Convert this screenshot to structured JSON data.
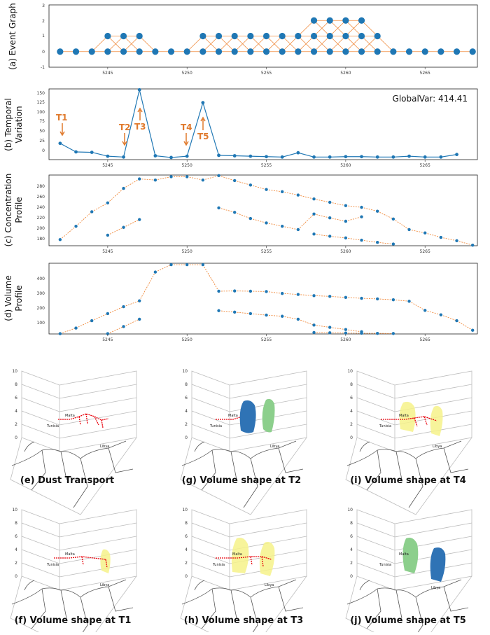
{
  "x_ticks": [
    "5245",
    "5250",
    "5255",
    "5260",
    "5265"
  ],
  "event_graph": {
    "ylabel": "(a) Event Graph",
    "yticks": [
      "3",
      "2",
      "1",
      "0",
      "-1"
    ],
    "baseline_x": [
      5242,
      5243,
      5244,
      5245,
      5246,
      5247,
      5248,
      5249,
      5250,
      5251,
      5252,
      5253,
      5254,
      5255,
      5256,
      5257,
      5258,
      5259,
      5260,
      5261,
      5262,
      5263,
      5264,
      5265,
      5266,
      5267,
      5268
    ],
    "level1_x": [
      5245,
      5246,
      5247,
      5251,
      5252,
      5253,
      5254,
      5255,
      5256,
      5257,
      5258,
      5259,
      5260,
      5261,
      5262
    ],
    "level2_x": [
      5258,
      5259,
      5260,
      5261
    ]
  },
  "temporal": {
    "ylabel_1": "(b) Temporal",
    "ylabel_2": "Variation",
    "yticks": [
      "150",
      "125",
      "100",
      "75",
      "50",
      "25",
      "0"
    ],
    "globalvar": "GlobalVar: 414.41",
    "labels": {
      "t1": "T1",
      "t2": "T2",
      "t3": "T3",
      "t4": "T4",
      "t5": "T5"
    }
  },
  "concentration": {
    "ylabel_1": "(c) Concentration",
    "ylabel_2": "Profile",
    "yticks": [
      "280",
      "260",
      "240",
      "220",
      "200",
      "180"
    ]
  },
  "volume": {
    "ylabel_1": "(d) Volume",
    "ylabel_2": "Profile",
    "yticks": [
      "400",
      "300",
      "200",
      "100"
    ]
  },
  "maps": {
    "zticks": [
      "10",
      "8",
      "6",
      "4",
      "2",
      "0"
    ],
    "place_malta": "Malta",
    "place_tunisia": "Tunisia",
    "place_libya": "Libya",
    "captions": {
      "e": "(e) Dust Transport",
      "g": "(g) Volume shape at T2",
      "i": "(i) Volume shape at T4",
      "f": "(f) Volume shape at T1",
      "h": "(h) Volume shape at T3",
      "j": "(j) Volume shape at T5"
    }
  },
  "colors": {
    "point": "#1f77b4",
    "edge": "#f08a3c",
    "annotation": "#e07a2d",
    "dust": "#e8000b"
  },
  "chart_data": [
    {
      "type": "scatter",
      "title": "(a) Event Graph",
      "xlim": [
        5241.3,
        5268.3
      ],
      "ylim": [
        -1,
        3
      ],
      "series": [
        {
          "x": [
            5242,
            5243,
            5244,
            5245,
            5246,
            5247,
            5248,
            5249,
            5250,
            5251,
            5252,
            5253,
            5254,
            5255,
            5256,
            5257,
            5258,
            5259,
            5260,
            5261,
            5262,
            5263,
            5264,
            5265,
            5266,
            5267,
            5268
          ],
          "y": [
            0,
            0,
            0,
            0,
            0,
            0,
            0,
            0,
            0,
            0,
            0,
            0,
            0,
            0,
            0,
            0,
            0,
            0,
            0,
            0,
            0,
            0,
            0,
            0,
            0,
            0,
            0
          ]
        },
        {
          "x": [
            5245,
            5246,
            5247,
            5251,
            5252,
            5253,
            5254,
            5255,
            5256,
            5257,
            5258,
            5259,
            5260,
            5261,
            5262
          ],
          "y": [
            1,
            1,
            1,
            1,
            1,
            1,
            1,
            1,
            1,
            1,
            1,
            1,
            1,
            1,
            1
          ]
        },
        {
          "x": [
            5258,
            5259,
            5260,
            5261
          ],
          "y": [
            2,
            2,
            2,
            2
          ]
        }
      ]
    },
    {
      "type": "line",
      "title": "(b) Temporal Variation",
      "xlim": [
        5241.3,
        5268.3
      ],
      "ylim": [
        -5,
        160
      ],
      "x": [
        5242,
        5243,
        5244,
        5245,
        5246,
        5247,
        5248,
        5249,
        5250,
        5251,
        5252,
        5253,
        5254,
        5255,
        5256,
        5257,
        5258,
        5259,
        5260,
        5261,
        5262,
        5263,
        5264,
        5265,
        5266,
        5267
      ],
      "y": [
        33,
        13,
        12,
        3,
        1,
        158,
        4,
        0,
        3,
        128,
        5,
        4,
        3,
        2,
        1,
        11,
        1,
        1,
        2,
        2,
        1,
        1,
        3,
        1,
        1,
        7
      ],
      "annotations": [
        {
          "label": "T1",
          "x": 5242
        },
        {
          "label": "T2",
          "x": 5246
        },
        {
          "label": "T3",
          "x": 5247
        },
        {
          "label": "T4",
          "x": 5250
        },
        {
          "label": "T5",
          "x": 5251
        }
      ],
      "text": "GlobalVar: 414.41"
    },
    {
      "type": "line",
      "title": "(c) Concentration Profile",
      "xlim": [
        5241.3,
        5268.3
      ],
      "ylim": [
        165,
        292
      ],
      "series": [
        {
          "x": [
            5242,
            5243,
            5244,
            5245,
            5246,
            5247,
            5248,
            5249,
            5250,
            5251,
            5252,
            5253,
            5254,
            5255,
            5256,
            5257,
            5258,
            5259,
            5260,
            5261,
            5262,
            5263,
            5264,
            5265,
            5266,
            5267,
            5268
          ],
          "y": [
            176,
            200,
            226,
            242,
            268,
            285,
            283,
            289,
            289,
            283,
            291,
            282,
            274,
            266,
            262,
            256,
            249,
            243,
            237,
            234,
            227,
            213,
            194,
            188,
            180,
            174,
            166
          ]
        },
        {
          "x": [
            5245,
            5246,
            5247
          ],
          "y": [
            184,
            198,
            212
          ]
        },
        {
          "x": [
            5252,
            5253,
            5254,
            5255,
            5256,
            5257,
            5258,
            5259,
            5260,
            5261
          ],
          "y": [
            233,
            225,
            214,
            206,
            200,
            194,
            222,
            215,
            209,
            217
          ]
        },
        {
          "x": [
            5258,
            5259,
            5260,
            5261,
            5262,
            5263
          ],
          "y": [
            186,
            182,
            179,
            175,
            171,
            168
          ]
        }
      ]
    },
    {
      "type": "line",
      "title": "(d) Volume Profile",
      "xlim": [
        5241.3,
        5268.3
      ],
      "ylim": [
        20,
        500
      ],
      "series": [
        {
          "x": [
            5242,
            5243,
            5244,
            5245,
            5246,
            5247,
            5248,
            5249,
            5250,
            5251,
            5252,
            5253,
            5254,
            5255,
            5256,
            5257,
            5258,
            5259,
            5260,
            5261,
            5262,
            5263,
            5264,
            5265,
            5266,
            5267,
            5268
          ],
          "y": [
            22,
            60,
            110,
            158,
            205,
            245,
            440,
            490,
            490,
            490,
            310,
            312,
            310,
            308,
            295,
            288,
            280,
            275,
            268,
            262,
            258,
            252,
            242,
            180,
            150,
            110,
            45
          ]
        },
        {
          "x": [
            5245,
            5246,
            5247
          ],
          "y": [
            22,
            70,
            120
          ]
        },
        {
          "x": [
            5252,
            5253,
            5254,
            5255,
            5256,
            5257,
            5258,
            5259,
            5260,
            5261
          ],
          "y": [
            178,
            168,
            158,
            148,
            140,
            120,
            80,
            65,
            50,
            35
          ]
        },
        {
          "x": [
            5258,
            5259,
            5260,
            5261,
            5262,
            5263
          ],
          "y": [
            30,
            28,
            26,
            25,
            24,
            23
          ]
        }
      ]
    }
  ]
}
